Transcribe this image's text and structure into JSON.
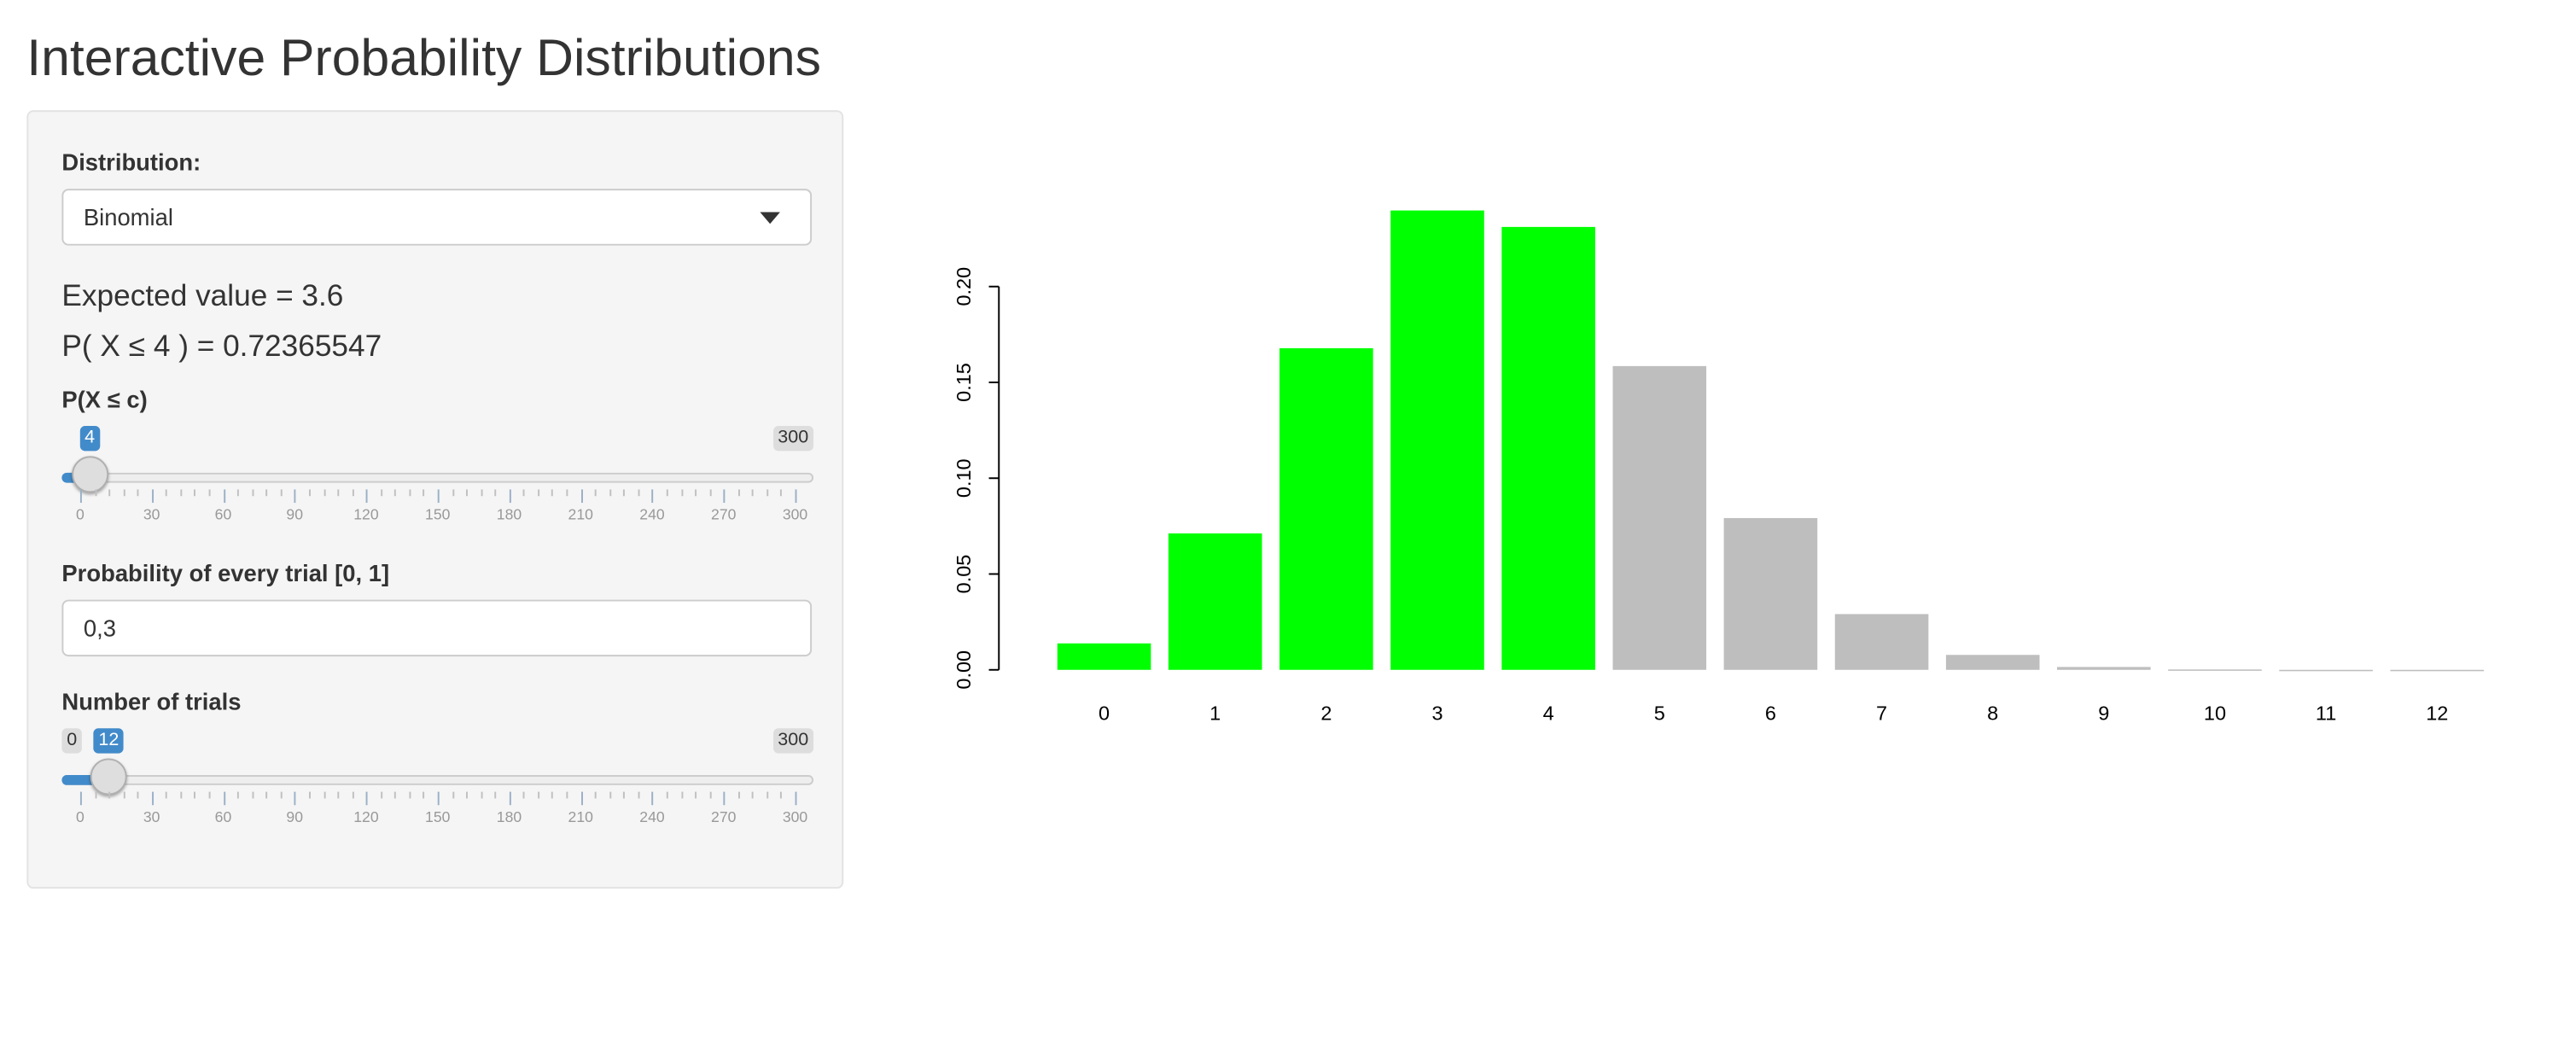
{
  "title": "Interactive Probability Distributions",
  "sidebar": {
    "distribution": {
      "label": "Distribution:",
      "selected": "Binomial"
    },
    "expected_value_text": "Expected value = 3.6",
    "probability_text": "P( X ≤ 4 ) = 0.72365547",
    "c_slider": {
      "label": "P(X ≤ c)",
      "min": 0,
      "max": 300,
      "value": 4,
      "min_label": "0",
      "max_label": "300",
      "value_label": "4"
    },
    "trial_prob": {
      "label": "Probability of every trial [0, 1]",
      "value": "0,3"
    },
    "trials_slider": {
      "label": "Number of trials",
      "min": 0,
      "max": 300,
      "value": 12,
      "min_label": "0",
      "max_label": "300",
      "value_label": "12"
    },
    "grid_labels": [
      "0",
      "30",
      "60",
      "90",
      "120",
      "150",
      "180",
      "210",
      "240",
      "270",
      "300"
    ]
  },
  "colors": {
    "highlight": "#00ff00",
    "rest": "#bebebe",
    "accent": "#428bca"
  },
  "chart_data": {
    "type": "bar",
    "title": "",
    "xlabel": "",
    "ylabel": "",
    "categories": [
      "0",
      "1",
      "2",
      "3",
      "4",
      "5",
      "6",
      "7",
      "8",
      "9",
      "10",
      "11",
      "12"
    ],
    "values": [
      0.0138,
      0.0712,
      0.1678,
      0.2397,
      0.2311,
      0.1585,
      0.0792,
      0.0291,
      0.0078,
      0.0015,
      0.0002,
      0.0,
      0.0
    ],
    "highlighted_through": 4,
    "ylim": [
      0,
      0.2397
    ],
    "yticks": [
      "0.00",
      "0.05",
      "0.10",
      "0.15",
      "0.20"
    ],
    "ytick_values": [
      0,
      0.05,
      0.1,
      0.15,
      0.2
    ],
    "grid": false
  }
}
